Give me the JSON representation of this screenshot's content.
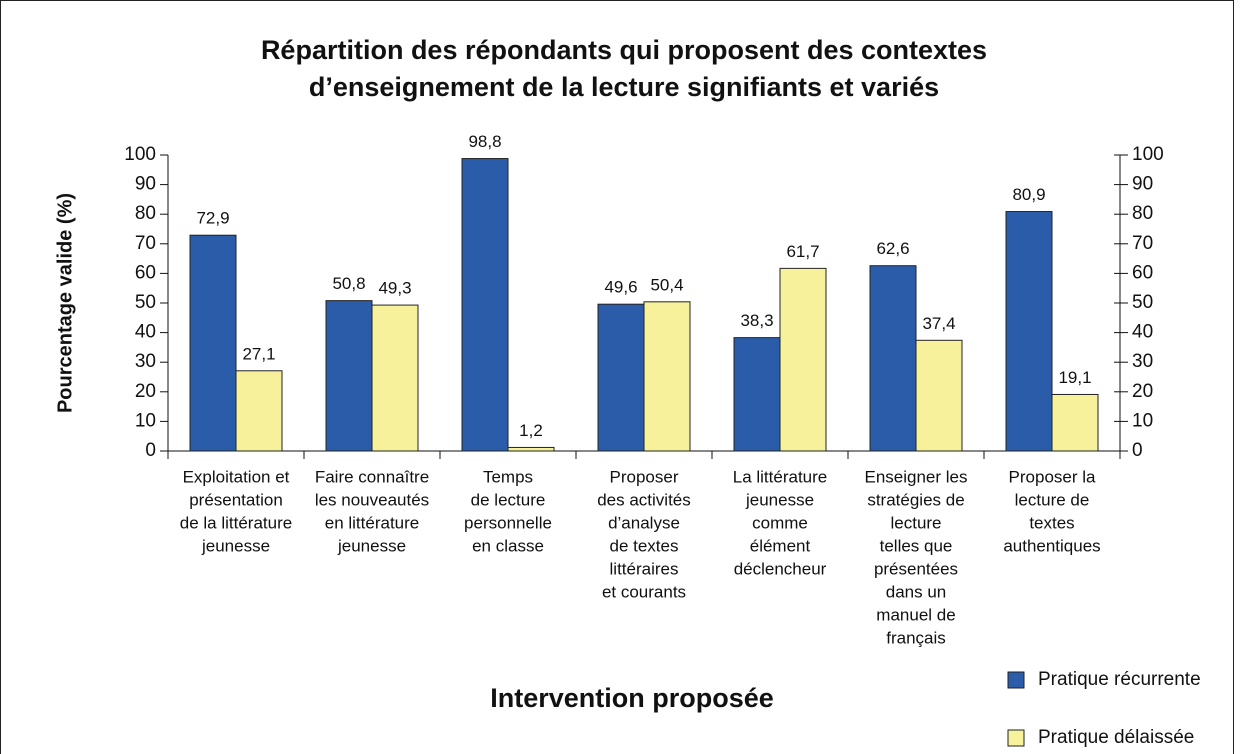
{
  "chart_data": {
    "type": "bar",
    "title": [
      "Répartition des répondants qui proposent des contextes",
      "d’enseignement de la lecture signifiants et variés"
    ],
    "y_label": "Pourcentage valide (%)",
    "x_label": "Intervention proposée",
    "categories": [
      [
        "Exploitation et",
        "présentation",
        "de la littérature",
        "jeunesse"
      ],
      [
        "Faire connaître",
        "les nouveautés",
        "en littérature",
        "jeunesse"
      ],
      [
        "Temps",
        "de lecture",
        "personnelle",
        "en classe"
      ],
      [
        "Proposer",
        "des activités",
        "d’analyse",
        "de textes",
        "littéraires",
        "et courants"
      ],
      [
        "La littérature",
        "jeunesse",
        "comme",
        "élément",
        "déclencheur"
      ],
      [
        "Enseigner les",
        "stratégies de",
        "lecture",
        "telles que",
        "présentées",
        "dans un",
        "manuel de",
        "français"
      ],
      [
        "Proposer la",
        "lecture de",
        "textes",
        "authentiques"
      ]
    ],
    "series": [
      {
        "name": "Pratique récurrente",
        "color": "#2b5caa",
        "values": [
          72.9,
          50.8,
          98.8,
          49.6,
          38.3,
          62.6,
          80.9
        ],
        "value_labels": [
          "72,9",
          "50,8",
          "98,8",
          "49,6",
          "38,3",
          "62,6",
          "80,9"
        ]
      },
      {
        "name": "Pratique délaissée",
        "color": "#f7f19c",
        "values": [
          27.1,
          49.3,
          1.2,
          50.4,
          61.7,
          37.4,
          19.1
        ],
        "value_labels": [
          "27,1",
          "49,3",
          "1,2",
          "50,4",
          "61,7",
          "37,4",
          "19,1"
        ]
      }
    ],
    "ylim": [
      0,
      100
    ],
    "yticks": [
      0,
      10,
      20,
      30,
      40,
      50,
      60,
      70,
      80,
      90,
      100
    ],
    "y2lim": [
      0,
      100
    ],
    "y2ticks": [
      0,
      10,
      20,
      30,
      40,
      50,
      60,
      70,
      80,
      90,
      100
    ],
    "legend": "bottom-right"
  }
}
